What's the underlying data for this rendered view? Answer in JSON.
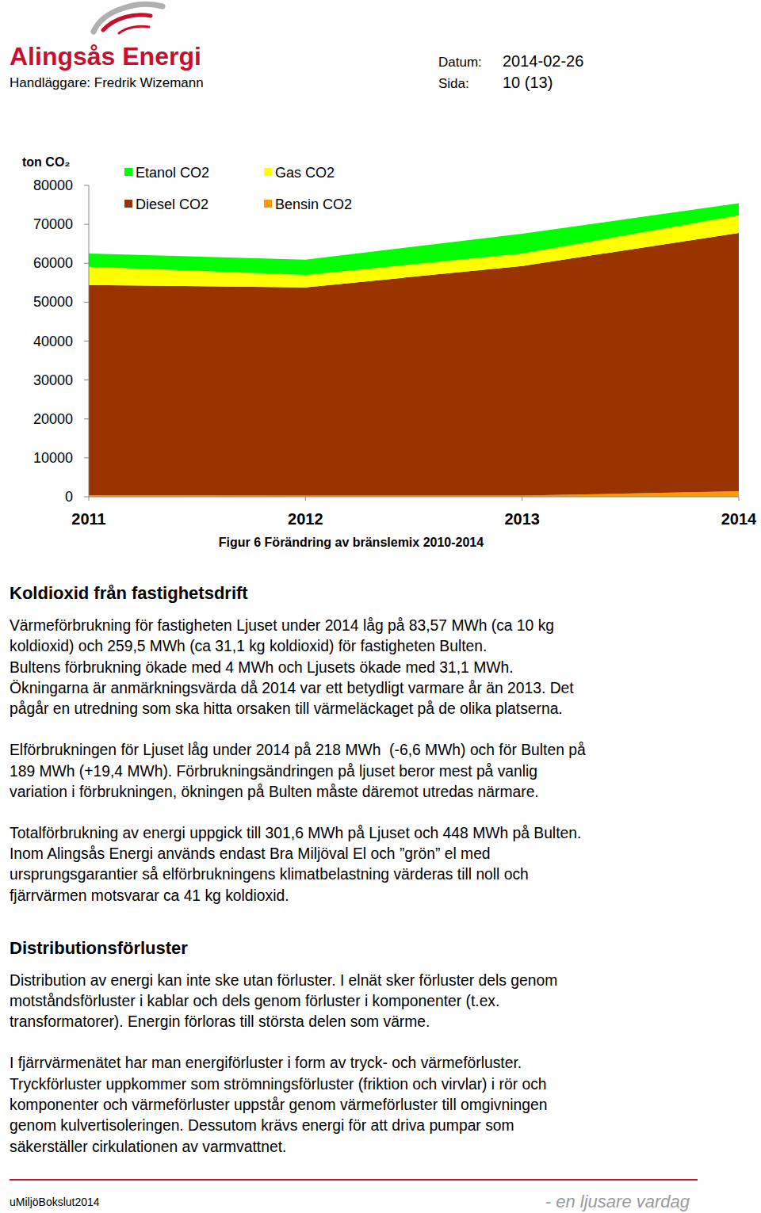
{
  "header": {
    "logo": "Alingsås Energi",
    "handler": "Handläggare: Fredrik Wizemann",
    "date_label": "Datum:",
    "date": "2014-02-26",
    "page_label": "Sida:",
    "page": "10 (13)"
  },
  "chart_data": {
    "type": "area",
    "title": "Figur 6 Förändring av bränslemix 2010-2014",
    "y_label": "ton CO₂",
    "categories": [
      "2011",
      "2012",
      "2013",
      "2014"
    ],
    "series": [
      {
        "name": "Bensin CO2",
        "color": "#ff9900",
        "values": [
          400,
          300,
          300,
          1400
        ]
      },
      {
        "name": "Diesel CO2",
        "color": "#993300",
        "values": [
          54000,
          53500,
          59000,
          66400
        ]
      },
      {
        "name": "Gas CO2",
        "color": "#ffff00",
        "values": [
          4700,
          3200,
          3200,
          4500
        ]
      },
      {
        "name": "Etanol CO2",
        "color": "#00ff00",
        "values": [
          3400,
          3900,
          5100,
          3100
        ]
      }
    ],
    "ylim": [
      0,
      80000
    ],
    "yticks": [
      0,
      10000,
      20000,
      30000,
      40000,
      50000,
      60000,
      70000,
      80000
    ],
    "stacked": true,
    "legend": "upper left",
    "grid": false
  },
  "sections": [
    {
      "heading": "Koldioxid från fastighetsdrift",
      "paragraphs": [
        [
          "Värmeförbrukning för fastigheten Ljuset under 2014 låg på 83,57 MWh (ca 10 kg",
          "koldioxid) och 259,5 MWh (ca 31,1 kg koldioxid) för fastigheten Bulten.",
          "Bultens förbrukning ökade med 4 MWh och Ljusets ökade med 31,1 MWh.",
          "Ökningarna är anmärkningsvärda då 2014 var ett betydligt varmare år än 2013. Det",
          "pågår en utredning som ska hitta orsaken till värmeläckaget på de olika platserna."
        ],
        [
          "Elförbrukningen för Ljuset låg under 2014 på 218 MWh  (-6,6 MWh) och för Bulten på",
          "189 MWh (+19,4 MWh). Förbrukningsändringen på ljuset beror mest på vanlig",
          "variation i förbrukningen, ökningen på Bulten måste däremot utredas närmare."
        ],
        [
          "Totalförbrukning av energi uppgick till 301,6 MWh på Ljuset och 448 MWh på Bulten.",
          "Inom Alingsås Energi används endast Bra Miljöval El och ”grön” el med",
          "ursprungsgarantier så elförbrukningens klimatbelastning värderas till noll och",
          "fjärrvärmen motsvarar ca 41 kg koldioxid."
        ]
      ]
    },
    {
      "heading": "Distributionsförluster",
      "paragraphs": [
        [
          "Distribution av energi kan inte ske utan förluster. I elnät sker förluster dels genom",
          "motståndsförluster i kablar och dels genom förluster i komponenter (t.ex.",
          "transformatorer). Energin förloras till största delen som värme."
        ],
        [
          "I fjärrvärmenätet har man energiförluster i form av tryck- och värmeförluster.",
          "Tryckförluster uppkommer som strömningsförluster (friktion och virvlar) i rör och",
          "komponenter och värmeförluster uppstår genom värmeförluster till omgivningen",
          "genom kulvertisoleringen. Dessutom krävs energi för att driva pumpar som",
          "säkerställer cirkulationen av varmvattnet."
        ]
      ]
    }
  ],
  "footer": {
    "left": "uMiljöBokslut2014",
    "right": "- en ljusare vardag"
  }
}
